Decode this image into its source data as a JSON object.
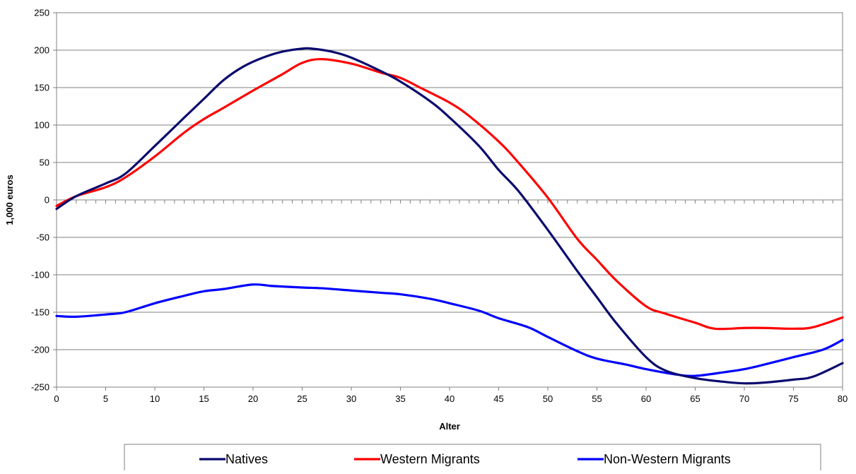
{
  "chart_data": {
    "type": "line",
    "title": "",
    "xlabel": "Alter",
    "ylabel": "1,000 euros",
    "xlim": [
      0,
      80
    ],
    "ylim": [
      -250,
      250
    ],
    "x_ticks": [
      "0",
      "5",
      "10",
      "15",
      "20",
      "25",
      "30",
      "35",
      "40",
      "45",
      "50",
      "55",
      "60",
      "65",
      "70",
      "75",
      "80"
    ],
    "y_ticks": [
      "250",
      "200",
      "150",
      "100",
      "50",
      "0",
      "-50",
      "-100",
      "-150",
      "-200",
      "-250"
    ],
    "grid": "horizontal",
    "legend_position": "bottom",
    "series": [
      {
        "name": "Natives",
        "color": "#0a0a6e",
        "x": [
          0,
          2,
          5,
          7,
          10,
          13,
          15,
          17,
          19,
          21,
          23,
          25,
          26,
          28,
          30,
          33,
          35,
          38,
          40,
          43,
          45,
          47,
          50,
          53,
          55,
          57,
          60,
          62,
          65,
          68,
          70,
          72,
          75,
          77,
          80
        ],
        "y": [
          -12,
          5,
          22,
          35,
          72,
          110,
          135,
          160,
          178,
          190,
          198,
          202,
          202,
          198,
          190,
          172,
          158,
          132,
          110,
          72,
          40,
          12,
          -40,
          -95,
          -130,
          -165,
          -210,
          -228,
          -238,
          -243,
          -245,
          -244,
          -240,
          -236,
          -218
        ]
      },
      {
        "name": "Western Migrants",
        "color": "#ff0000",
        "x": [
          0,
          2,
          5,
          7,
          10,
          13,
          15,
          17,
          20,
          23,
          25,
          27,
          30,
          33,
          35,
          37,
          40,
          42,
          45,
          47,
          50,
          53,
          55,
          57,
          60,
          62,
          65,
          67,
          70,
          72,
          75,
          77,
          80
        ],
        "y": [
          -8,
          5,
          17,
          30,
          58,
          90,
          108,
          123,
          146,
          168,
          183,
          188,
          182,
          170,
          163,
          150,
          130,
          112,
          78,
          50,
          3,
          -52,
          -80,
          -108,
          -142,
          -152,
          -164,
          -172,
          -171,
          -171,
          -172,
          -170,
          -157
        ]
      },
      {
        "name": "Non-Western Migrants",
        "color": "#0000ff",
        "x": [
          0,
          2,
          5,
          7,
          10,
          13,
          15,
          17,
          20,
          22,
          25,
          27,
          30,
          33,
          35,
          38,
          40,
          43,
          45,
          48,
          50,
          53,
          55,
          58,
          60,
          63,
          65,
          68,
          70,
          72,
          75,
          78,
          80
        ],
        "y": [
          -155,
          -156,
          -153,
          -150,
          -138,
          -128,
          -122,
          -119,
          -113,
          -115,
          -117,
          -118,
          -121,
          -124,
          -126,
          -132,
          -138,
          -148,
          -158,
          -170,
          -183,
          -202,
          -212,
          -220,
          -226,
          -233,
          -235,
          -230,
          -226,
          -220,
          -210,
          -200,
          -187
        ]
      }
    ]
  }
}
